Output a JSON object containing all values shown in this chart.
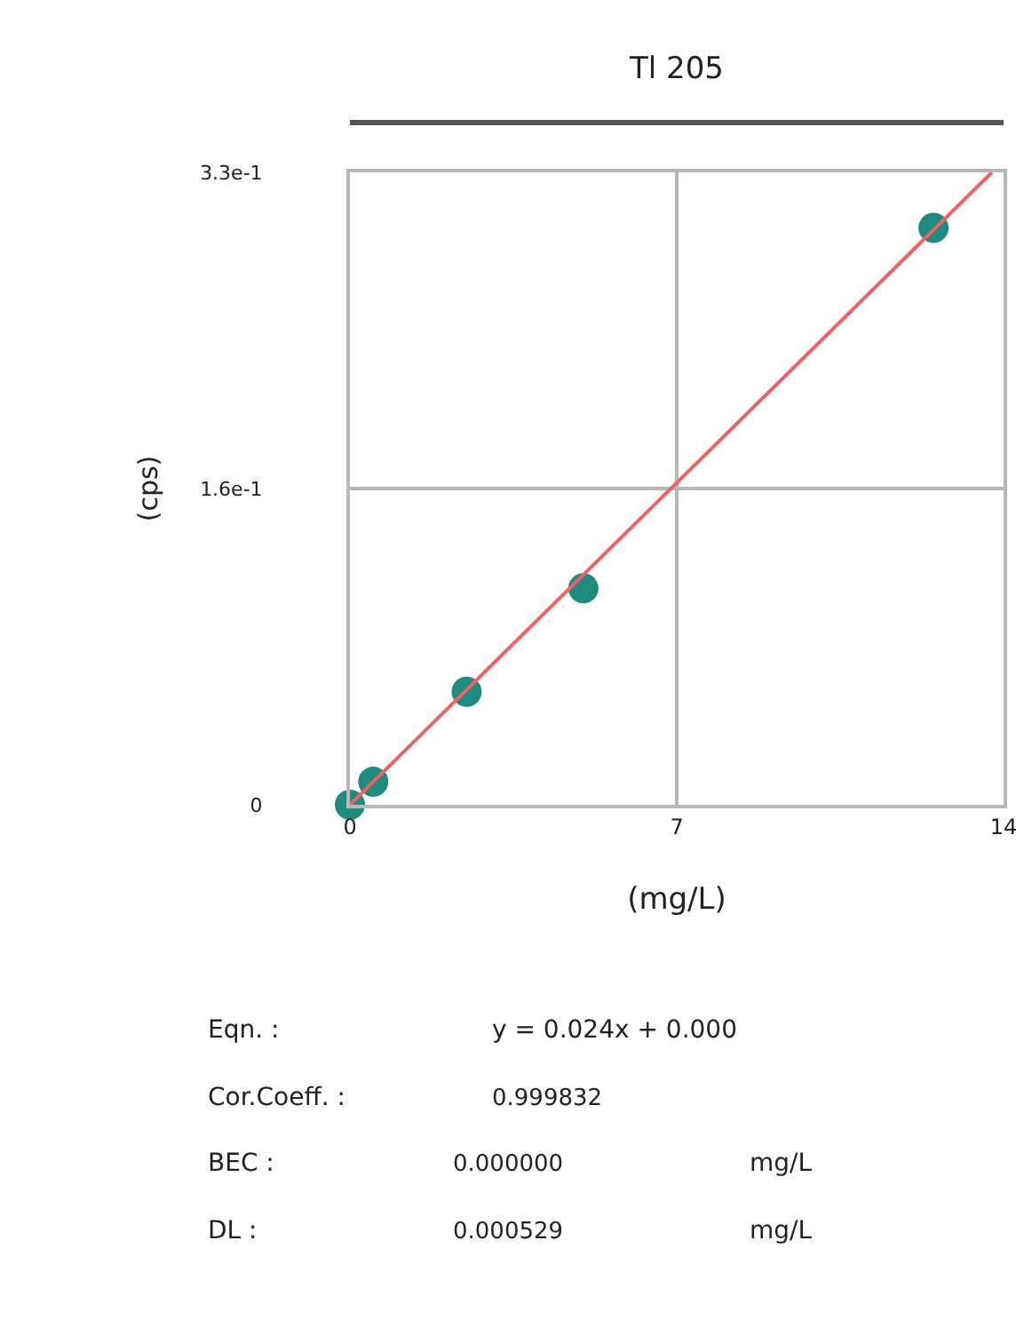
{
  "chart_data": {
    "type": "scatter",
    "title": "Tl 205",
    "xlabel": "(mg/L)",
    "ylabel": "(cps)",
    "x": [
      0,
      0.5,
      2.5,
      5,
      12.5
    ],
    "series": [
      {
        "marker": "circle",
        "color": "#1f8a80",
        "values": [
          0,
          0.012,
          0.059,
          0.113,
          0.301
        ]
      },
      {
        "type": "line",
        "color": "#f06262",
        "x": [
          0,
          13.75
        ],
        "values": [
          0,
          0.33
        ]
      }
    ],
    "xlim": [
      0,
      14
    ],
    "xticks": [
      0,
      7,
      14
    ],
    "ylim": [
      0,
      0.33
    ],
    "yticks": [
      0,
      {
        "value": 0.165,
        "label": "1.6e-1"
      },
      {
        "value": 0.33,
        "label": "3.3e-1"
      }
    ],
    "grid": true,
    "annotations": [
      "Eqn. :",
      "y = 0.024x + 0.000",
      "Cor.Coeff. :",
      "0.999832",
      "BEC :",
      "0.000000",
      "mg/L",
      "DL :",
      "0.000529",
      "mg/L"
    ]
  }
}
